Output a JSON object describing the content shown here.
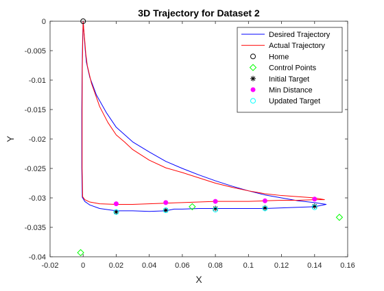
{
  "chart_data": {
    "type": "line",
    "title": "3D Trajectory for Dataset 2",
    "xlabel": "X",
    "ylabel": "Y",
    "xlim": [
      -0.02,
      0.16
    ],
    "ylim": [
      -0.04,
      0
    ],
    "xticks": [
      -0.02,
      0,
      0.02,
      0.04,
      0.06,
      0.08,
      0.1,
      0.12,
      0.14,
      0.16
    ],
    "xtick_labels": [
      "-0.02",
      "0",
      "0.02",
      "0.04",
      "0.06",
      "0.08",
      "0.1",
      "0.12",
      "0.14",
      "0.16"
    ],
    "yticks": [
      0,
      -0.005,
      -0.01,
      -0.015,
      -0.02,
      -0.025,
      -0.03,
      -0.035,
      -0.04
    ],
    "ytick_labels": [
      "0",
      "-0.005",
      "-0.01",
      "-0.015",
      "-0.02",
      "-0.025",
      "-0.03",
      "-0.035",
      "-0.04"
    ],
    "grid": false,
    "legend_position": "top-right",
    "series": [
      {
        "name": "Desired Trajectory",
        "kind": "line",
        "color": "#0000ff",
        "x": [
          0,
          0.0004,
          0.0008,
          0.0013,
          0.002,
          0.004,
          0.008,
          0.014,
          0.02,
          0.03,
          0.04,
          0.05,
          0.06,
          0.07,
          0.08,
          0.09,
          0.1,
          0.11,
          0.12,
          0.13,
          0.14,
          0.147,
          0.14,
          0.13,
          0.12,
          0.11,
          0.1,
          0.09,
          0.08,
          0.07,
          0.06,
          0.055,
          0.05,
          0.04,
          0.03,
          0.02,
          0.01,
          0.004,
          0.001,
          -0.0005,
          -0.0008,
          -0.0008,
          -0.0006,
          -0.0003,
          0
        ],
        "y": [
          0,
          -0.0015,
          -0.003,
          -0.005,
          -0.007,
          -0.0095,
          -0.0125,
          -0.0155,
          -0.018,
          -0.0205,
          -0.0222,
          -0.0238,
          -0.025,
          -0.0261,
          -0.0271,
          -0.028,
          -0.0288,
          -0.0295,
          -0.03,
          -0.0305,
          -0.0308,
          -0.0311,
          -0.0315,
          -0.0316,
          -0.0317,
          -0.0318,
          -0.0318,
          -0.0318,
          -0.0318,
          -0.0318,
          -0.0319,
          -0.0319,
          -0.0322,
          -0.0323,
          -0.0322,
          -0.0322,
          -0.0318,
          -0.0312,
          -0.0306,
          -0.0299,
          -0.025,
          -0.015,
          -0.008,
          -0.003,
          0
        ]
      },
      {
        "name": "Actual Trajectory",
        "kind": "line",
        "color": "#ff0000",
        "x": [
          0,
          0.0004,
          0.0009,
          0.0016,
          0.0025,
          0.005,
          0.01,
          0.015,
          0.02,
          0.025,
          0.03,
          0.04,
          0.05,
          0.06,
          0.07,
          0.08,
          0.09,
          0.1,
          0.11,
          0.12,
          0.13,
          0.14,
          0.146,
          0.14,
          0.13,
          0.12,
          0.11,
          0.1,
          0.09,
          0.08,
          0.07,
          0.06,
          0.05,
          0.04,
          0.03,
          0.02,
          0.01,
          0.004,
          0.001,
          -0.0003,
          -0.0006,
          -0.0006,
          -0.0005,
          -0.0002,
          0
        ],
        "y": [
          0,
          -0.0015,
          -0.003,
          -0.0055,
          -0.0075,
          -0.0105,
          -0.0145,
          -0.0172,
          -0.0193,
          -0.0205,
          -0.0218,
          -0.0236,
          -0.0249,
          -0.0257,
          -0.0266,
          -0.0275,
          -0.0282,
          -0.0288,
          -0.0293,
          -0.0296,
          -0.0298,
          -0.03,
          -0.0303,
          -0.0303,
          -0.0304,
          -0.0304,
          -0.0305,
          -0.0306,
          -0.0306,
          -0.0306,
          -0.0307,
          -0.0308,
          -0.0309,
          -0.031,
          -0.0311,
          -0.0311,
          -0.031,
          -0.0307,
          -0.0303,
          -0.0298,
          -0.025,
          -0.015,
          -0.008,
          -0.003,
          0
        ]
      },
      {
        "name": "Home",
        "kind": "marker",
        "marker": "circle",
        "color": "#000000",
        "x": [
          0
        ],
        "y": [
          0
        ]
      },
      {
        "name": "Control Points",
        "kind": "marker",
        "marker": "diamond",
        "color": "#00ff00",
        "x": [
          -0.0015,
          0.066,
          0.155
        ],
        "y": [
          -0.0393,
          -0.0315,
          -0.0333
        ]
      },
      {
        "name": "Initial Target",
        "kind": "marker",
        "marker": "asterisk",
        "color": "#000000",
        "x": [
          0.02,
          0.05,
          0.08,
          0.11,
          0.14
        ],
        "y": [
          -0.0324,
          -0.0321,
          -0.0318,
          -0.0317,
          -0.0314
        ]
      },
      {
        "name": "Min Distance",
        "kind": "marker",
        "marker": "dot",
        "color": "#ff00ff",
        "x": [
          0.02,
          0.05,
          0.08,
          0.11,
          0.14
        ],
        "y": [
          -0.031,
          -0.0308,
          -0.0306,
          -0.0305,
          -0.0302
        ]
      },
      {
        "name": "Updated Target",
        "kind": "marker",
        "marker": "circle",
        "color": "#00ffff",
        "x": [
          0.02,
          0.05,
          0.08,
          0.11,
          0.14
        ],
        "y": [
          -0.0324,
          -0.0321,
          -0.032,
          -0.0318,
          -0.0316
        ]
      }
    ]
  }
}
